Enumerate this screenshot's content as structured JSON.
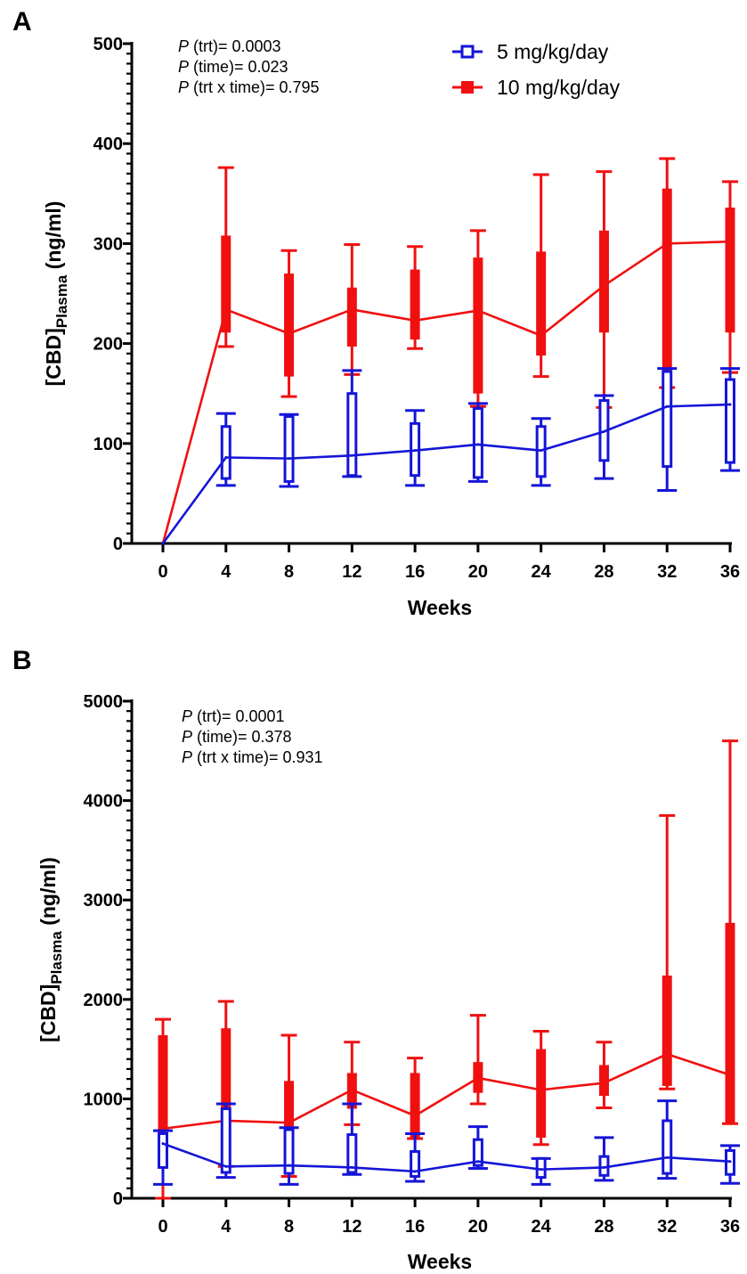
{
  "chart_data": [
    {
      "panel": "A",
      "type": "line",
      "xlabel": "Weeks",
      "ylabel_main": "[CBD]",
      "ylabel_sub": "Plasma",
      "ylabel_unit": "(ng/ml)",
      "x": [
        0,
        4,
        8,
        12,
        16,
        20,
        24,
        28,
        32,
        36
      ],
      "xticks": [
        "0",
        "4",
        "8",
        "12",
        "16",
        "20",
        "24",
        "28",
        "32",
        "36"
      ],
      "ylim": [
        0,
        500
      ],
      "yticks": [
        "0",
        "100",
        "200",
        "300",
        "400",
        "500"
      ],
      "stats": [
        {
          "p": "P",
          "rest": " (trt)= 0.0003"
        },
        {
          "p": "P",
          "rest": " (time)= 0.023"
        },
        {
          "p": "P",
          "rest": " (trt x time)= 0.795"
        }
      ],
      "legend": [
        {
          "label": "5 mg/kg/day",
          "marker": "open-square",
          "color": "#1515d8"
        },
        {
          "label": "10 mg/kg/day",
          "marker": "filled-square",
          "color": "#f01010"
        }
      ],
      "series": [
        {
          "name": "5 mg/kg/day",
          "color": "#1515d8",
          "style": "open",
          "median": [
            0,
            86,
            85,
            88,
            93,
            99,
            93,
            112,
            137,
            139
          ],
          "q1": [
            0,
            65,
            62,
            68,
            68,
            66,
            67,
            83,
            77,
            81
          ],
          "q3": [
            0,
            117,
            127,
            150,
            120,
            135,
            117,
            143,
            172,
            164
          ],
          "min": [
            0,
            58,
            57,
            67,
            58,
            62,
            58,
            65,
            53,
            73
          ],
          "max": [
            0,
            130,
            129,
            173,
            133,
            140,
            125,
            148,
            175,
            175
          ]
        },
        {
          "name": "10 mg/kg/day",
          "color": "#f01010",
          "style": "filled",
          "median": [
            0,
            234,
            210,
            234,
            223,
            233,
            208,
            258,
            300,
            302
          ],
          "q1": [
            0,
            211,
            167,
            197,
            204,
            150,
            188,
            211,
            156,
            211
          ],
          "q3": [
            0,
            308,
            270,
            256,
            274,
            286,
            292,
            313,
            355,
            336
          ],
          "min": [
            0,
            197,
            147,
            169,
            195,
            137,
            167,
            136,
            156,
            171
          ],
          "max": [
            0,
            376,
            293,
            299,
            297,
            313,
            369,
            372,
            385,
            362
          ]
        }
      ]
    },
    {
      "panel": "B",
      "type": "line",
      "xlabel": "Weeks",
      "ylabel_main": "[CBD]",
      "ylabel_sub": "Plasma",
      "ylabel_unit": "(ng/ml)",
      "x": [
        0,
        4,
        8,
        12,
        16,
        20,
        24,
        28,
        32,
        36
      ],
      "xticks": [
        "0",
        "4",
        "8",
        "12",
        "16",
        "20",
        "24",
        "28",
        "32",
        "36"
      ],
      "ylim": [
        0,
        5000
      ],
      "yticks": [
        "0",
        "1000",
        "2000",
        "3000",
        "4000",
        "5000"
      ],
      "stats": [
        {
          "p": "P",
          "rest": " (trt)= 0.0001"
        },
        {
          "p": "P",
          "rest": " (time)= 0.378"
        },
        {
          "p": "P",
          "rest": " (trt x time)= 0.931"
        }
      ],
      "legend": [],
      "series": [
        {
          "name": "5 mg/kg/day",
          "color": "#1515d8",
          "style": "open",
          "median": [
            550,
            320,
            330,
            310,
            270,
            370,
            290,
            310,
            410,
            370
          ],
          "q1": [
            310,
            260,
            250,
            260,
            220,
            330,
            210,
            230,
            250,
            240
          ],
          "q3": [
            650,
            900,
            690,
            640,
            470,
            590,
            400,
            420,
            780,
            480
          ],
          "min": [
            140,
            210,
            140,
            240,
            170,
            300,
            140,
            180,
            200,
            150
          ],
          "max": [
            680,
            950,
            710,
            950,
            650,
            720,
            400,
            610,
            980,
            530
          ]
        },
        {
          "name": "10 mg/kg/day",
          "color": "#f01010",
          "style": "filled",
          "median": [
            700,
            780,
            760,
            1090,
            830,
            1210,
            1090,
            1160,
            1450,
            1240
          ],
          "q1": [
            370,
            390,
            330,
            900,
            610,
            1060,
            610,
            1030,
            1130,
            750
          ],
          "q3": [
            1640,
            1710,
            1180,
            1260,
            1260,
            1370,
            1500,
            1340,
            2240,
            2770
          ],
          "min": [
            0,
            320,
            220,
            740,
            600,
            950,
            540,
            910,
            1100,
            750
          ],
          "max": [
            1800,
            1980,
            1640,
            1570,
            1410,
            1840,
            1680,
            1570,
            3850,
            4600
          ]
        }
      ]
    }
  ]
}
